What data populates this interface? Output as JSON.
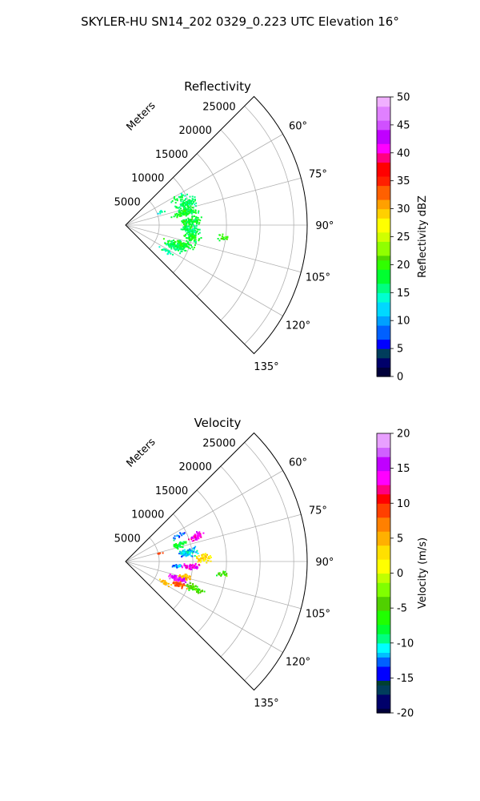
{
  "suptitle": "SKYLER-HU  SN14_202  0329_0.223 UTC Elevation 16°",
  "chart_data": [
    {
      "type": "heatmap",
      "projection": "polar-sector",
      "title": "Reflectivity",
      "range_label": "Meters",
      "range_ticks": [
        "5000",
        "10000",
        "15000",
        "20000",
        "25000"
      ],
      "range_tick_values": [
        5000,
        10000,
        15000,
        20000,
        25000
      ],
      "range_max": 27000,
      "azimuth_ticks": [
        "60°",
        "75°",
        "90°",
        "105°",
        "120°",
        "135°"
      ],
      "azimuth_tick_values": [
        60,
        75,
        90,
        105,
        120,
        135
      ],
      "azimuth_range": [
        45,
        135
      ],
      "grid": true,
      "colorbar": {
        "label": "Reflectivity dBZ",
        "ticks": [
          "0",
          "5",
          "10",
          "15",
          "20",
          "25",
          "30",
          "35",
          "40",
          "45",
          "50"
        ],
        "min": 0,
        "max": 50,
        "colormap": "pyart_NWSRef-like"
      },
      "echo_cells": [
        {
          "az": 70,
          "range": 9500,
          "daz": 6,
          "drange": 2000,
          "value": 17,
          "density": 0.55
        },
        {
          "az": 78,
          "range": 9000,
          "daz": 5,
          "drange": 2500,
          "value": 18,
          "density": 0.5
        },
        {
          "az": 86,
          "range": 9500,
          "daz": 5,
          "drange": 2000,
          "value": 18,
          "density": 0.55
        },
        {
          "az": 93,
          "range": 9500,
          "daz": 5,
          "drange": 2000,
          "value": 17,
          "density": 0.5
        },
        {
          "az": 100,
          "range": 10000,
          "daz": 6,
          "drange": 1500,
          "value": 18,
          "density": 0.45
        },
        {
          "az": 112,
          "range": 8000,
          "daz": 6,
          "drange": 2500,
          "value": 17,
          "density": 0.5
        },
        {
          "az": 108,
          "range": 9000,
          "daz": 4,
          "drange": 2000,
          "value": 18,
          "density": 0.45
        },
        {
          "az": 97,
          "range": 14500,
          "daz": 3,
          "drange": 1200,
          "value": 19,
          "density": 0.35
        },
        {
          "az": 122,
          "range": 7000,
          "daz": 3,
          "drange": 1500,
          "value": 16,
          "density": 0.35
        },
        {
          "az": 62,
          "range": 9000,
          "daz": 4,
          "drange": 2000,
          "value": 17,
          "density": 0.15
        },
        {
          "az": 68,
          "range": 5500,
          "daz": 3,
          "drange": 1000,
          "value": 14,
          "density": 0.2
        }
      ]
    },
    {
      "type": "heatmap",
      "projection": "polar-sector",
      "title": "Velocity",
      "range_label": "Meters",
      "range_ticks": [
        "5000",
        "10000",
        "15000",
        "20000",
        "25000"
      ],
      "range_tick_values": [
        5000,
        10000,
        15000,
        20000,
        25000
      ],
      "range_max": 27000,
      "azimuth_ticks": [
        "60°",
        "75°",
        "90°",
        "105°",
        "120°",
        "135°"
      ],
      "azimuth_tick_values": [
        60,
        75,
        90,
        105,
        120,
        135
      ],
      "azimuth_range": [
        45,
        135
      ],
      "grid": true,
      "colorbar": {
        "label": "Velocity (m/s)",
        "ticks": [
          "-20",
          "-15",
          "-10",
          "-5",
          "0",
          "5",
          "10",
          "15",
          "20"
        ],
        "min": -20,
        "max": 20,
        "colormap": "pyart_BuDRd-like"
      },
      "echo_cells": [
        {
          "az": 72,
          "range": 8500,
          "daz": 4,
          "drange": 1500,
          "value": -7,
          "density": 0.5
        },
        {
          "az": 70,
          "range": 11000,
          "daz": 4,
          "drange": 1500,
          "value": 14,
          "density": 0.5
        },
        {
          "az": 81,
          "range": 9000,
          "daz": 5,
          "drange": 2000,
          "value": -11,
          "density": 0.55
        },
        {
          "az": 87,
          "range": 11500,
          "daz": 4,
          "drange": 1500,
          "value": 3,
          "density": 0.5
        },
        {
          "az": 94,
          "range": 9500,
          "daz": 4,
          "drange": 2000,
          "value": 14,
          "density": 0.5
        },
        {
          "az": 94,
          "range": 7500,
          "daz": 3,
          "drange": 1000,
          "value": -12,
          "density": 0.45
        },
        {
          "az": 104,
          "range": 9000,
          "daz": 4,
          "drange": 1500,
          "value": 5,
          "density": 0.5
        },
        {
          "az": 108,
          "range": 8000,
          "daz": 4,
          "drange": 2000,
          "value": 15,
          "density": 0.55
        },
        {
          "az": 113,
          "range": 8500,
          "daz": 4,
          "drange": 1500,
          "value": 8,
          "density": 0.5
        },
        {
          "az": 111,
          "range": 11000,
          "daz": 4,
          "drange": 2000,
          "value": -4,
          "density": 0.45
        },
        {
          "az": 118,
          "range": 6500,
          "daz": 3,
          "drange": 1500,
          "value": 4,
          "density": 0.4
        },
        {
          "az": 97,
          "range": 14500,
          "daz": 3,
          "drange": 1200,
          "value": -5,
          "density": 0.35
        },
        {
          "az": 63,
          "range": 9000,
          "daz": 3,
          "drange": 2000,
          "value": -12,
          "density": 0.15
        },
        {
          "az": 75,
          "range": 5200,
          "daz": 2,
          "drange": 800,
          "value": 9,
          "density": 0.25
        }
      ]
    }
  ]
}
